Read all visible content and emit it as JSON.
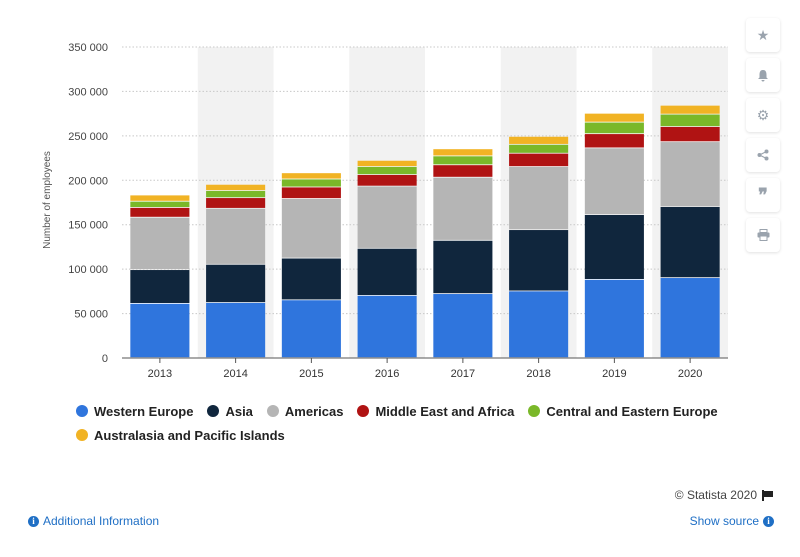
{
  "chart_data": {
    "type": "bar",
    "stacked": true,
    "categories": [
      "2013",
      "2014",
      "2015",
      "2016",
      "2017",
      "2018",
      "2019",
      "2020"
    ],
    "series": [
      {
        "name": "Western Europe",
        "color": "#2f75dd",
        "values": [
          61000,
          62000,
          65000,
          70000,
          72000,
          75000,
          88000,
          90000
        ]
      },
      {
        "name": "Asia",
        "color": "#10263d",
        "values": [
          38000,
          43000,
          47000,
          53000,
          60000,
          69000,
          73000,
          80000
        ]
      },
      {
        "name": "Americas",
        "color": "#b5b5b5",
        "values": [
          59000,
          63000,
          67000,
          70000,
          71000,
          71000,
          75000,
          73000
        ]
      },
      {
        "name": "Middle East and Africa",
        "color": "#b01313",
        "values": [
          11000,
          12000,
          13000,
          13000,
          14000,
          15000,
          16000,
          17000
        ]
      },
      {
        "name": "Central and Eastern Europe",
        "color": "#7ab829",
        "values": [
          7000,
          8000,
          9000,
          9000,
          10000,
          10000,
          13000,
          14000
        ]
      },
      {
        "name": "Australasia and Pacific Islands",
        "color": "#f1b324",
        "values": [
          7000,
          7000,
          7000,
          7000,
          8000,
          9000,
          10000,
          10000
        ]
      }
    ],
    "ylabel": "Number of employees",
    "xlabel": "",
    "ylim": [
      0,
      350000
    ],
    "yticks": [
      0,
      50000,
      100000,
      150000,
      200000,
      250000,
      300000,
      350000
    ],
    "ytick_labels": [
      "0",
      "50 000",
      "100 000",
      "150 000",
      "200 000",
      "250 000",
      "300 000",
      "350 000"
    ],
    "grid": true,
    "legend_position": "bottom"
  },
  "toolbar": {
    "star_icon": "star-icon",
    "bell_icon": "bell-icon",
    "gear_icon": "gear-icon",
    "share_icon": "share-icon",
    "quote_icon": "quote-icon",
    "print_icon": "print-icon"
  },
  "footer": {
    "copyright": "© Statista 2020",
    "additional_info": "Additional Information",
    "show_source": "Show source"
  }
}
